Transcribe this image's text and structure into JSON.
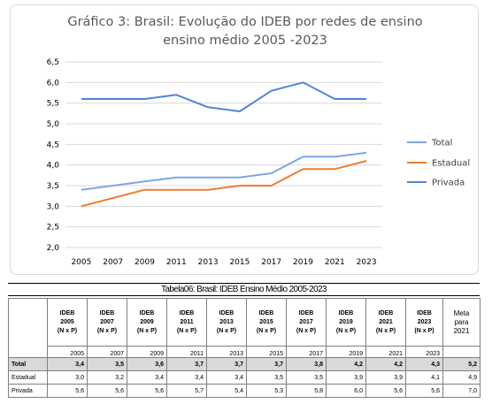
{
  "chart_data": {
    "type": "line",
    "title": "Gráfico 3: Brasil: Evolução do IDEB por redes de ensino",
    "subtitle": "ensino médio 2005 -2023",
    "categories": [
      "2005",
      "2007",
      "2009",
      "2011",
      "2013",
      "2015",
      "2017",
      "2019",
      "2021",
      "2023"
    ],
    "y_ticks": [
      "6,5",
      "6,0",
      "5,5",
      "5,0",
      "4,5",
      "4,0",
      "3,5",
      "3,0",
      "2,5",
      "2,0"
    ],
    "ylim": [
      2.0,
      6.5
    ],
    "grid": true,
    "legend_position": "right",
    "series": [
      {
        "name": "Total",
        "color": "#7ea6e0",
        "values": [
          3.4,
          3.5,
          3.6,
          3.7,
          3.7,
          3.7,
          3.8,
          4.2,
          4.2,
          4.3
        ]
      },
      {
        "name": "Estadual",
        "color": "#ed7d31",
        "values": [
          3.0,
          3.2,
          3.4,
          3.4,
          3.4,
          3.5,
          3.5,
          3.9,
          3.9,
          4.1
        ]
      },
      {
        "name": "Privada",
        "color": "#4f86d6",
        "values": [
          5.6,
          5.6,
          5.6,
          5.7,
          5.4,
          5.3,
          5.8,
          6.0,
          5.6,
          5.6
        ]
      }
    ]
  },
  "table": {
    "caption": "Tabela06: Brasil: IDEB Ensino Médio 2005-2023",
    "headers": [
      {
        "l1": "IDEB",
        "l2": "2005",
        "l3": "(N x P)"
      },
      {
        "l1": "IDEB",
        "l2": "2007",
        "l3": "(N x P)"
      },
      {
        "l1": "IDEB",
        "l2": "2009",
        "l3": "(N x P)"
      },
      {
        "l1": "IDEB",
        "l2": "2011",
        "l3": "(N x P)"
      },
      {
        "l1": "IDEB",
        "l2": "2013",
        "l3": "(N x P)"
      },
      {
        "l1": "IDEB",
        "l2": "2015",
        "l3": "(N x P)"
      },
      {
        "l1": "IDEB",
        "l2": "2017",
        "l3": "(N x P)"
      },
      {
        "l1": "IDEB",
        "l2": "2019",
        "l3": "(N x P)"
      },
      {
        "l1": "IDEB",
        "l2": "2021",
        "l3": "(N x P)"
      },
      {
        "l1": "IDEB",
        "l2": "2023",
        "l3": "(N x P)"
      }
    ],
    "meta_header": {
      "l1": "Meta para",
      "l2": "2021"
    },
    "subheaders": [
      "2005",
      "2007",
      "2009",
      "2011",
      "2013",
      "2015",
      "2017",
      "2019",
      "2021",
      "2023",
      ""
    ],
    "rows": [
      {
        "label": "Total",
        "values": [
          "3,4",
          "3,5",
          "3,6",
          "3,7",
          "3,7",
          "3,7",
          "3,8",
          "4,2",
          "4,2",
          "4,3",
          "5,2"
        ]
      },
      {
        "label": "Estadual",
        "values": [
          "3,0",
          "3,2",
          "3,4",
          "3,4",
          "3,4",
          "3,5",
          "3,5",
          "3,9",
          "3,9",
          "4,1",
          "4,9"
        ]
      },
      {
        "label": "Privada",
        "values": [
          "5,6",
          "5,6",
          "5,6",
          "5,7",
          "5,4",
          "5,3",
          "5,8",
          "6,0",
          "5,6",
          "5,6",
          "7,0"
        ]
      }
    ]
  }
}
